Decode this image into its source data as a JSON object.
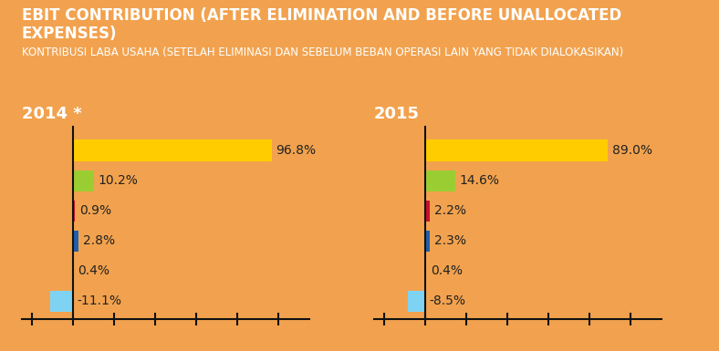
{
  "title": "EBIT CONTRIBUTION (AFTER ELIMINATION AND BEFORE UNALLOCATED EXPENSES)",
  "subtitle": "KONTRIBUSI LABA USAHA (SETELAH ELIMINASI DAN SEBELUM BEBAN OPERASI LAIN YANG TIDAK DIALOKASIKAN)",
  "chart_data": [
    {
      "type": "bar",
      "title": "2014 *",
      "orientation": "horizontal",
      "categories": [
        null,
        null,
        null,
        null,
        null,
        null
      ],
      "values": [
        96.8,
        10.2,
        0.9,
        2.8,
        0.4,
        -11.1
      ],
      "value_labels": [
        "96.8%",
        "10.2%",
        "0.9%",
        "2.8%",
        "0.4%",
        "-11.1%"
      ],
      "colors": [
        "#FFCC00",
        "#9ACD32",
        "#C8102E",
        "#1F5FAA",
        "#E8B4D0",
        "#7FD3F2"
      ],
      "xlim": [
        -25,
        115
      ],
      "xticks": [
        -20,
        0,
        20,
        40,
        60,
        80,
        100
      ],
      "data_labels": true,
      "tick_labels": false
    },
    {
      "type": "bar",
      "title": "2015",
      "orientation": "horizontal",
      "categories": [
        null,
        null,
        null,
        null,
        null,
        null
      ],
      "values": [
        89.0,
        14.6,
        2.2,
        2.3,
        0.4,
        -8.5
      ],
      "value_labels": [
        "89.0%",
        "14.6%",
        "2.2%",
        "2.3%",
        "0.4%",
        "-8.5%"
      ],
      "colors": [
        "#FFCC00",
        "#9ACD32",
        "#C8102E",
        "#1F5FAA",
        "#E8B4D0",
        "#7FD3F2"
      ],
      "xlim": [
        -25,
        115
      ],
      "xticks": [
        -20,
        0,
        20,
        40,
        60,
        80,
        100
      ],
      "data_labels": true,
      "tick_labels": false
    }
  ]
}
